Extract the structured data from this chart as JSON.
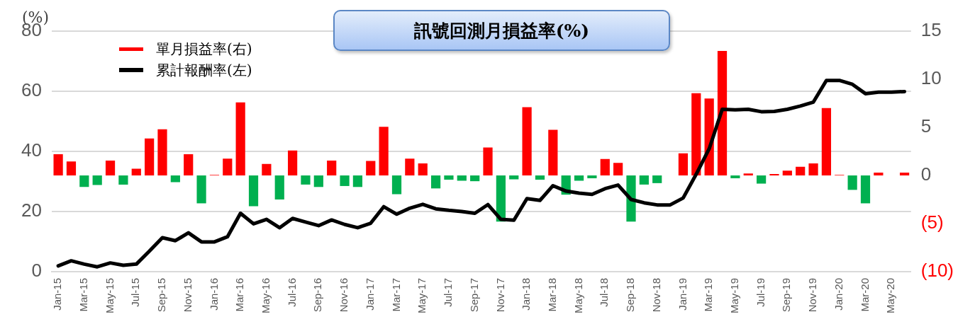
{
  "chart_data": {
    "type": "bar",
    "title": "訊號回測月損益率(%)",
    "ylabel": "(%)",
    "categories": [
      "Jan-15",
      null,
      "Mar-15",
      null,
      "May-15",
      null,
      "Jul-15",
      null,
      "Sep-15",
      null,
      "Nov-15",
      null,
      "Jan-16",
      null,
      "Mar-16",
      null,
      "May-16",
      null,
      "Jul-16",
      null,
      "Sep-16",
      null,
      "Nov-16",
      null,
      "Jan-17",
      null,
      "Mar-17",
      null,
      "May-17",
      null,
      "Jul-17",
      null,
      "Sep-17",
      null,
      "Nov-17",
      null,
      "Jan-18",
      null,
      "Mar-18",
      null,
      "May-18",
      null,
      "Jul-18",
      null,
      "Sep-18",
      null,
      "Nov-18",
      null,
      "Jan-19",
      null,
      "Mar-19",
      null,
      "May-19",
      null,
      "Jul-19",
      null,
      "Sep-19",
      null,
      "Nov-19",
      null,
      "Jan-20",
      null,
      "Mar-20",
      null,
      "May-20",
      null
    ],
    "series": [
      {
        "name": "單月損益率(右)",
        "axis": "y2",
        "color": "#ff0000",
        "values": [
          2.2,
          1.45,
          -1.2,
          -1.0,
          1.55,
          -0.95,
          0.7,
          3.85,
          4.8,
          -0.7,
          2.2,
          -2.9,
          0.05,
          1.75,
          7.6,
          -3.2,
          1.2,
          -2.5,
          2.6,
          -0.95,
          -1.2,
          1.55,
          -1.1,
          -1.2,
          1.5,
          5.05,
          -1.95,
          1.75,
          1.25,
          -1.35,
          -0.45,
          -0.55,
          -0.6,
          2.9,
          -4.8,
          -0.4,
          7.1,
          -0.45,
          4.75,
          -2.0,
          -0.55,
          -0.3,
          1.7,
          1.3,
          -4.8,
          -0.95,
          -0.8,
          0,
          2.3,
          8.55,
          8.0,
          12.95,
          -0.3,
          0.2,
          -0.85,
          0.15,
          0.5,
          0.9,
          1.25,
          7.0,
          0.05,
          -1.5,
          -2.9,
          0.3,
          0,
          0.3
        ],
        "colors": [
          "#ff0000",
          "#ff0000",
          "#00b050",
          "#00b050",
          "#ff0000",
          "#00b050",
          "#ff0000",
          "#ff0000",
          "#ff0000",
          "#00b050",
          "#ff0000",
          "#00b050",
          "#ff0000",
          "#ff0000",
          "#ff0000",
          "#00b050",
          "#ff0000",
          "#00b050",
          "#ff0000",
          "#00b050",
          "#00b050",
          "#ff0000",
          "#00b050",
          "#00b050",
          "#ff0000",
          "#ff0000",
          "#00b050",
          "#ff0000",
          "#ff0000",
          "#00b050",
          "#00b050",
          "#00b050",
          "#00b050",
          "#ff0000",
          "#00b050",
          "#00b050",
          "#ff0000",
          "#00b050",
          "#ff0000",
          "#00b050",
          "#00b050",
          "#00b050",
          "#ff0000",
          "#ff0000",
          "#00b050",
          "#00b050",
          "#00b050",
          "#ff0000",
          "#ff0000",
          "#ff0000",
          "#ff0000",
          "#ff0000",
          "#00b050",
          "#ff0000",
          "#00b050",
          "#ff0000",
          "#ff0000",
          "#ff0000",
          "#ff0000",
          "#ff0000",
          "#ff0000",
          "#00b050",
          "#00b050",
          "#ff0000",
          "#ff0000",
          "#ff0000"
        ]
      },
      {
        "name": "累計報酬率(左)",
        "type": "line",
        "color": "#000000",
        "values": [
          1.9,
          3.6,
          2.5,
          1.6,
          2.9,
          2.1,
          2.5,
          6.8,
          11.3,
          10.3,
          12.9,
          9.9,
          9.9,
          11.6,
          19.4,
          15.9,
          17.4,
          14.6,
          17.7,
          16.5,
          15.3,
          17.2,
          15.7,
          14.6,
          16.1,
          21.6,
          19.1,
          21.1,
          22.4,
          20.9,
          20.4,
          20.0,
          19.4,
          22.3,
          17.4,
          17.1,
          24.3,
          23.7,
          28.6,
          26.8,
          26.1,
          25.7,
          27.6,
          28.8,
          24.0,
          22.9,
          22.2,
          22.2,
          24.5,
          32.4,
          40.9,
          54.0,
          53.8,
          54.0,
          53.2,
          53.3,
          54.0,
          55.1,
          56.4,
          63.6,
          63.6,
          62.3,
          59.2,
          59.7,
          59.7,
          59.9
        ]
      }
    ],
    "ylim": [
      0,
      80
    ],
    "yticks": [
      0,
      20,
      40,
      60,
      80
    ],
    "y2lim": [
      -10,
      15
    ],
    "y2ticks": [
      {
        "value": -10,
        "label": "(10)"
      },
      {
        "value": -5,
        "label": "(5)"
      },
      0,
      5,
      10,
      15
    ],
    "grid": "y",
    "legend": "top left",
    "marker": "none",
    "line_style": "solid"
  }
}
